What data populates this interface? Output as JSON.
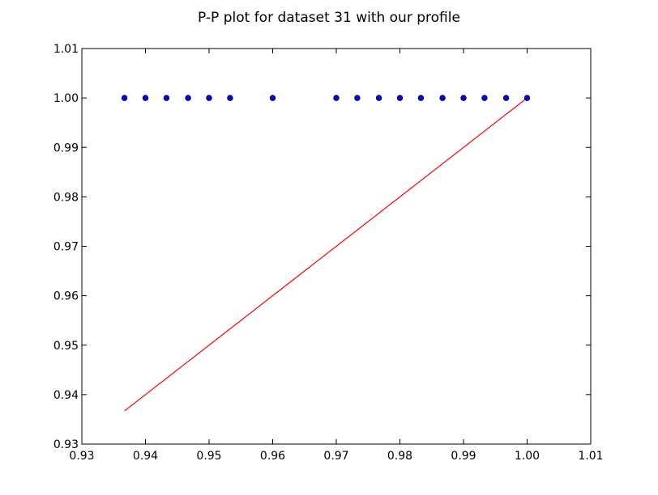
{
  "chart_data": {
    "type": "scatter",
    "title": "P-P plot for dataset 31 with our profile",
    "xlabel": "",
    "ylabel": "",
    "xlim": [
      0.93,
      1.01
    ],
    "ylim": [
      0.93,
      1.01
    ],
    "xticks": [
      "0.93",
      "0.94",
      "0.95",
      "0.96",
      "0.97",
      "0.98",
      "0.99",
      "1.00",
      "1.01"
    ],
    "yticks": [
      "0.93",
      "0.94",
      "0.95",
      "0.96",
      "0.97",
      "0.98",
      "0.99",
      "1.00",
      "1.01"
    ],
    "grid": false,
    "series": [
      {
        "kind": "scatter",
        "color": "#0000ff",
        "edge_color": "#000000",
        "x": [
          0.9367,
          0.94,
          0.9433,
          0.9467,
          0.95,
          0.9533,
          0.96,
          0.97,
          0.9733,
          0.9767,
          0.98,
          0.9833,
          0.9867,
          0.99,
          0.9933,
          0.9967,
          1.0
        ],
        "y": [
          1.0,
          1.0,
          1.0,
          1.0,
          1.0,
          1.0,
          1.0,
          1.0,
          1.0,
          1.0,
          1.0,
          1.0,
          1.0,
          1.0,
          1.0,
          1.0,
          1.0
        ]
      },
      {
        "kind": "line",
        "color": "#ff0000",
        "x": [
          0.9367,
          1.0
        ],
        "y": [
          0.9367,
          1.0
        ]
      }
    ]
  }
}
